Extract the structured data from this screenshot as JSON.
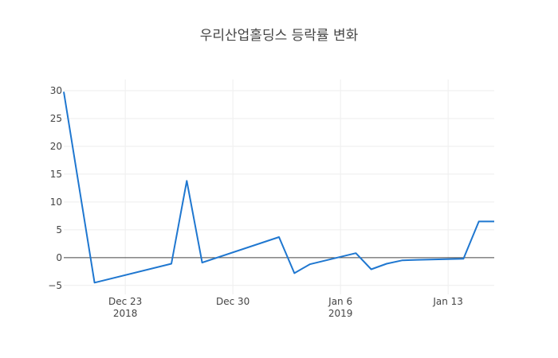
{
  "chart_data": {
    "type": "line",
    "title": "우리산업홀딩스 등락률 변화",
    "xlabel": "",
    "ylabel": "",
    "x_range": [
      "2018-12-19",
      "2019-01-16"
    ],
    "ylim": [
      -6.6,
      32
    ],
    "grid": true,
    "x_ticks": [
      {
        "date": "2018-12-23",
        "label": "Dec 23",
        "sublabel": "2018"
      },
      {
        "date": "2018-12-30",
        "label": "Dec 30",
        "sublabel": ""
      },
      {
        "date": "2019-01-06",
        "label": "Jan 6",
        "sublabel": "2019"
      },
      {
        "date": "2019-01-13",
        "label": "Jan 13",
        "sublabel": ""
      }
    ],
    "y_ticks": [
      {
        "value": -5,
        "label": "−5"
      },
      {
        "value": 0,
        "label": "0"
      },
      {
        "value": 5,
        "label": "5"
      },
      {
        "value": 10,
        "label": "10"
      },
      {
        "value": 15,
        "label": "15"
      },
      {
        "value": 20,
        "label": "20"
      },
      {
        "value": 25,
        "label": "25"
      },
      {
        "value": 30,
        "label": "30"
      }
    ],
    "colors": {
      "series": "#1f77d0"
    },
    "series": [
      {
        "x": [
          "2018-12-19",
          "2018-12-21",
          "2018-12-26",
          "2018-12-27",
          "2018-12-28",
          "2019-01-02",
          "2019-01-03",
          "2019-01-04",
          "2019-01-07",
          "2019-01-08",
          "2019-01-09",
          "2019-01-10",
          "2019-01-11",
          "2019-01-14",
          "2019-01-15",
          "2019-01-16"
        ],
        "y": [
          29.8,
          -4.5,
          -1.1,
          13.8,
          -0.9,
          3.7,
          -2.8,
          -1.2,
          0.8,
          -2.1,
          -1.1,
          -0.5,
          -0.4,
          -0.2,
          6.5,
          6.5
        ]
      }
    ]
  }
}
